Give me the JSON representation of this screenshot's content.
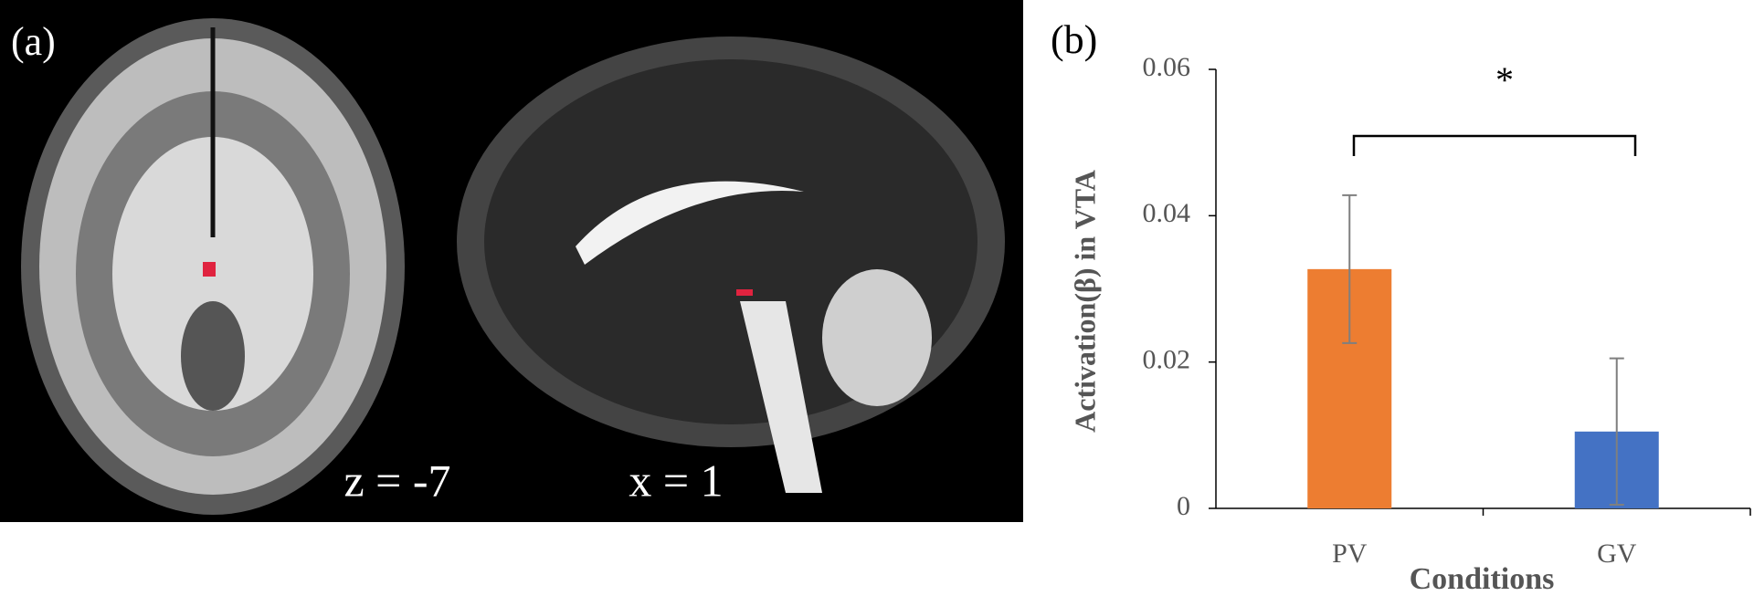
{
  "panel_a": {
    "label": "(a)",
    "axial_label": "z = -7",
    "sagittal_label": "x = 1"
  },
  "chart_data": {
    "type": "bar",
    "label": "(b)",
    "y_label": "Activation(β) in VTA",
    "x_label": "Conditions",
    "categories": [
      "PV",
      "GV"
    ],
    "values": [
      0.0327,
      0.0105
    ],
    "errors": [
      0.0101,
      0.01
    ],
    "colors": [
      "#ed7d31",
      "#4472c4"
    ],
    "error_color": "#7f7f7f",
    "ylim": [
      0,
      0.06
    ],
    "yticks": [
      0,
      0.02,
      0.04,
      0.06
    ],
    "annotation": "*"
  }
}
